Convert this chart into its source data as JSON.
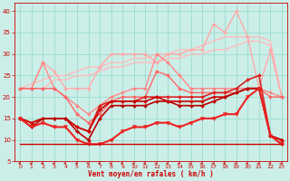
{
  "bg_color": "#cceee8",
  "grid_color": "#99ddcc",
  "text_color": "#cc0000",
  "xlabel": "Vent moyen/en rafales ( km/h )",
  "x": [
    0,
    1,
    2,
    3,
    4,
    5,
    6,
    7,
    8,
    9,
    10,
    11,
    12,
    13,
    14,
    15,
    16,
    17,
    18,
    19,
    20,
    21,
    22,
    23
  ],
  "xlim": [
    -0.5,
    23.5
  ],
  "ylim": [
    5,
    42
  ],
  "yticks": [
    5,
    10,
    15,
    20,
    25,
    30,
    35,
    40
  ],
  "xticks": [
    0,
    1,
    2,
    3,
    4,
    5,
    6,
    7,
    8,
    9,
    10,
    11,
    12,
    13,
    14,
    15,
    16,
    17,
    18,
    19,
    20,
    21,
    22,
    23
  ],
  "lines": [
    {
      "y": [
        22,
        23,
        24,
        25,
        25,
        26,
        27,
        27,
        28,
        28,
        29,
        29,
        30,
        30,
        31,
        31,
        32,
        33,
        34,
        34,
        34,
        34,
        33,
        20
      ],
      "color": "#ffbbbb",
      "lw": 1.0,
      "marker": null,
      "ms": 0
    },
    {
      "y": [
        22,
        22,
        22,
        24,
        24,
        25,
        25,
        26,
        27,
        27,
        28,
        28,
        28,
        29,
        29,
        30,
        30,
        31,
        31,
        32,
        33,
        33,
        32,
        20
      ],
      "color": "#ffbbbb",
      "lw": 1.0,
      "marker": null,
      "ms": 0
    },
    {
      "y": [
        22,
        22,
        28,
        26,
        22,
        22,
        22,
        27,
        30,
        30,
        30,
        30,
        28,
        30,
        30,
        31,
        31,
        37,
        35,
        40,
        34,
        22,
        31,
        20
      ],
      "color": "#ffaaaa",
      "lw": 1.0,
      "marker": "D",
      "ms": 2.0
    },
    {
      "y": [
        22,
        22,
        28,
        22,
        20,
        18,
        16,
        18,
        20,
        21,
        22,
        22,
        30,
        28,
        25,
        22,
        22,
        22,
        22,
        22,
        22,
        22,
        21,
        20
      ],
      "color": "#ff8888",
      "lw": 1.0,
      "marker": "D",
      "ms": 2.0
    },
    {
      "y": [
        22,
        22,
        22,
        22,
        20,
        16,
        14,
        16,
        19,
        20,
        20,
        20,
        26,
        25,
        22,
        21,
        21,
        21,
        21,
        21,
        22,
        22,
        20,
        20
      ],
      "color": "#ff6666",
      "lw": 1.0,
      "marker": "D",
      "ms": 2.0
    },
    {
      "y": [
        15,
        14,
        15,
        15,
        15,
        13,
        12,
        18,
        19,
        19,
        19,
        20,
        20,
        20,
        20,
        20,
        20,
        21,
        21,
        22,
        24,
        25,
        11,
        10
      ],
      "color": "#dd2222",
      "lw": 1.2,
      "marker": "D",
      "ms": 2.0
    },
    {
      "y": [
        15,
        14,
        15,
        15,
        15,
        13,
        12,
        17,
        19,
        19,
        19,
        19,
        20,
        19,
        19,
        19,
        19,
        20,
        20,
        21,
        22,
        22,
        11,
        10
      ],
      "color": "#cc0000",
      "lw": 1.2,
      "marker": "D",
      "ms": 2.0
    },
    {
      "y": [
        15,
        13,
        15,
        15,
        15,
        12,
        10,
        15,
        18,
        18,
        18,
        18,
        19,
        19,
        18,
        18,
        18,
        19,
        20,
        21,
        22,
        22,
        11,
        9
      ],
      "color": "#bb0000",
      "lw": 1.2,
      "marker": "D",
      "ms": 2.0
    },
    {
      "y": [
        15,
        13,
        14,
        13,
        13,
        10,
        9,
        9,
        10,
        12,
        13,
        13,
        14,
        14,
        13,
        14,
        15,
        15,
        16,
        16,
        20,
        22,
        11,
        9
      ],
      "color": "#ee2222",
      "lw": 1.5,
      "marker": "v",
      "ms": 3.0
    },
    {
      "y": [
        9,
        9,
        9,
        9,
        9,
        9,
        9,
        9,
        9,
        9,
        9,
        9,
        9,
        9,
        9,
        9,
        9,
        9,
        9,
        9,
        9,
        9,
        9,
        9
      ],
      "color": "#cc0000",
      "lw": 1.0,
      "marker": null,
      "ms": 0
    }
  ]
}
